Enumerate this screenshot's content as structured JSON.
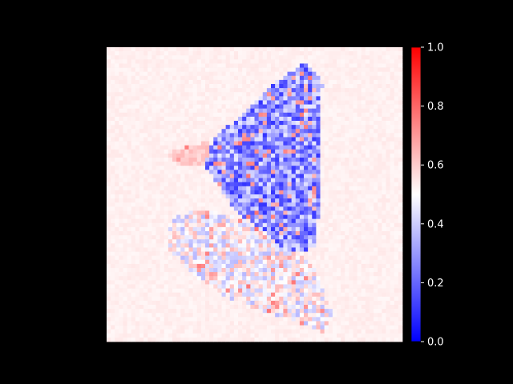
{
  "chart_data": {
    "type": "heatmap",
    "title": "",
    "xlabel": "",
    "ylabel": "",
    "axes_visible": false,
    "colormap": "bwr",
    "colormap_stops": [
      "#0000ff",
      "#ffffff",
      "#ff0000"
    ],
    "colorbar": {
      "range": [
        0.0,
        1.0
      ],
      "ticks": [
        0.0,
        0.2,
        0.4,
        0.6,
        0.8,
        1.0
      ],
      "tick_labels": [
        "0.0",
        "0.2",
        "0.4",
        "0.6",
        "0.8",
        "1.0"
      ]
    },
    "background_value": 0.53,
    "description_of_regions": [
      {
        "shape": "triangle-upper",
        "value_mean": 0.28,
        "noise": 0.18,
        "polygon": [
          [
            0.67,
            0.05
          ],
          [
            0.73,
            0.12
          ],
          [
            0.72,
            0.28
          ],
          [
            0.72,
            0.5
          ],
          [
            0.71,
            0.68
          ],
          [
            0.62,
            0.7
          ],
          [
            0.52,
            0.62
          ],
          [
            0.43,
            0.55
          ],
          [
            0.33,
            0.4
          ],
          [
            0.37,
            0.3
          ],
          [
            0.47,
            0.22
          ],
          [
            0.57,
            0.12
          ]
        ]
      },
      {
        "shape": "triangle-lower",
        "value_mean": 0.5,
        "noise": 0.14,
        "polygon": [
          [
            0.33,
            0.55
          ],
          [
            0.45,
            0.58
          ],
          [
            0.57,
            0.66
          ],
          [
            0.7,
            0.74
          ],
          [
            0.76,
            0.9
          ],
          [
            0.74,
            0.97
          ],
          [
            0.6,
            0.92
          ],
          [
            0.45,
            0.87
          ],
          [
            0.32,
            0.8
          ],
          [
            0.2,
            0.68
          ],
          [
            0.22,
            0.58
          ]
        ]
      },
      {
        "shape": "left-arm",
        "value_mean": 0.6,
        "noise": 0.04,
        "polygon": [
          [
            0.2,
            0.36
          ],
          [
            0.34,
            0.32
          ],
          [
            0.38,
            0.4
          ],
          [
            0.24,
            0.4
          ]
        ]
      }
    ],
    "grid_size": 72
  }
}
